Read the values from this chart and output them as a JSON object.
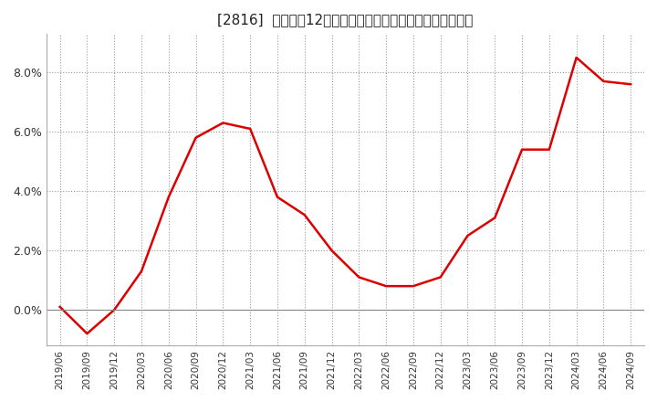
{
  "title": "[2816]  売上高の12か月移動合計の対前年同期増減率の推移",
  "title_fontsize": 11,
  "line_color": "#dd0000",
  "background_color": "#ffffff",
  "grid_color": "#999999",
  "ylim": [
    -0.012,
    0.093
  ],
  "yticks": [
    0.0,
    0.02,
    0.04,
    0.06,
    0.08
  ],
  "ytick_labels": [
    "0.0%",
    "2.0%",
    "4.0%",
    "6.0%",
    "8.0%"
  ],
  "x_labels": [
    "2019/06",
    "2019/09",
    "2019/12",
    "2020/03",
    "2020/06",
    "2020/09",
    "2020/12",
    "2021/03",
    "2021/06",
    "2021/09",
    "2021/12",
    "2022/03",
    "2022/06",
    "2022/09",
    "2022/12",
    "2023/03",
    "2023/06",
    "2023/09",
    "2023/12",
    "2024/03",
    "2024/06",
    "2024/09"
  ],
  "y_values": [
    0.001,
    -0.008,
    0.0,
    0.013,
    0.038,
    0.058,
    0.063,
    0.061,
    0.038,
    0.032,
    0.02,
    0.011,
    0.008,
    0.008,
    0.011,
    0.025,
    0.031,
    0.054,
    0.054,
    0.085,
    0.077,
    0.076
  ]
}
